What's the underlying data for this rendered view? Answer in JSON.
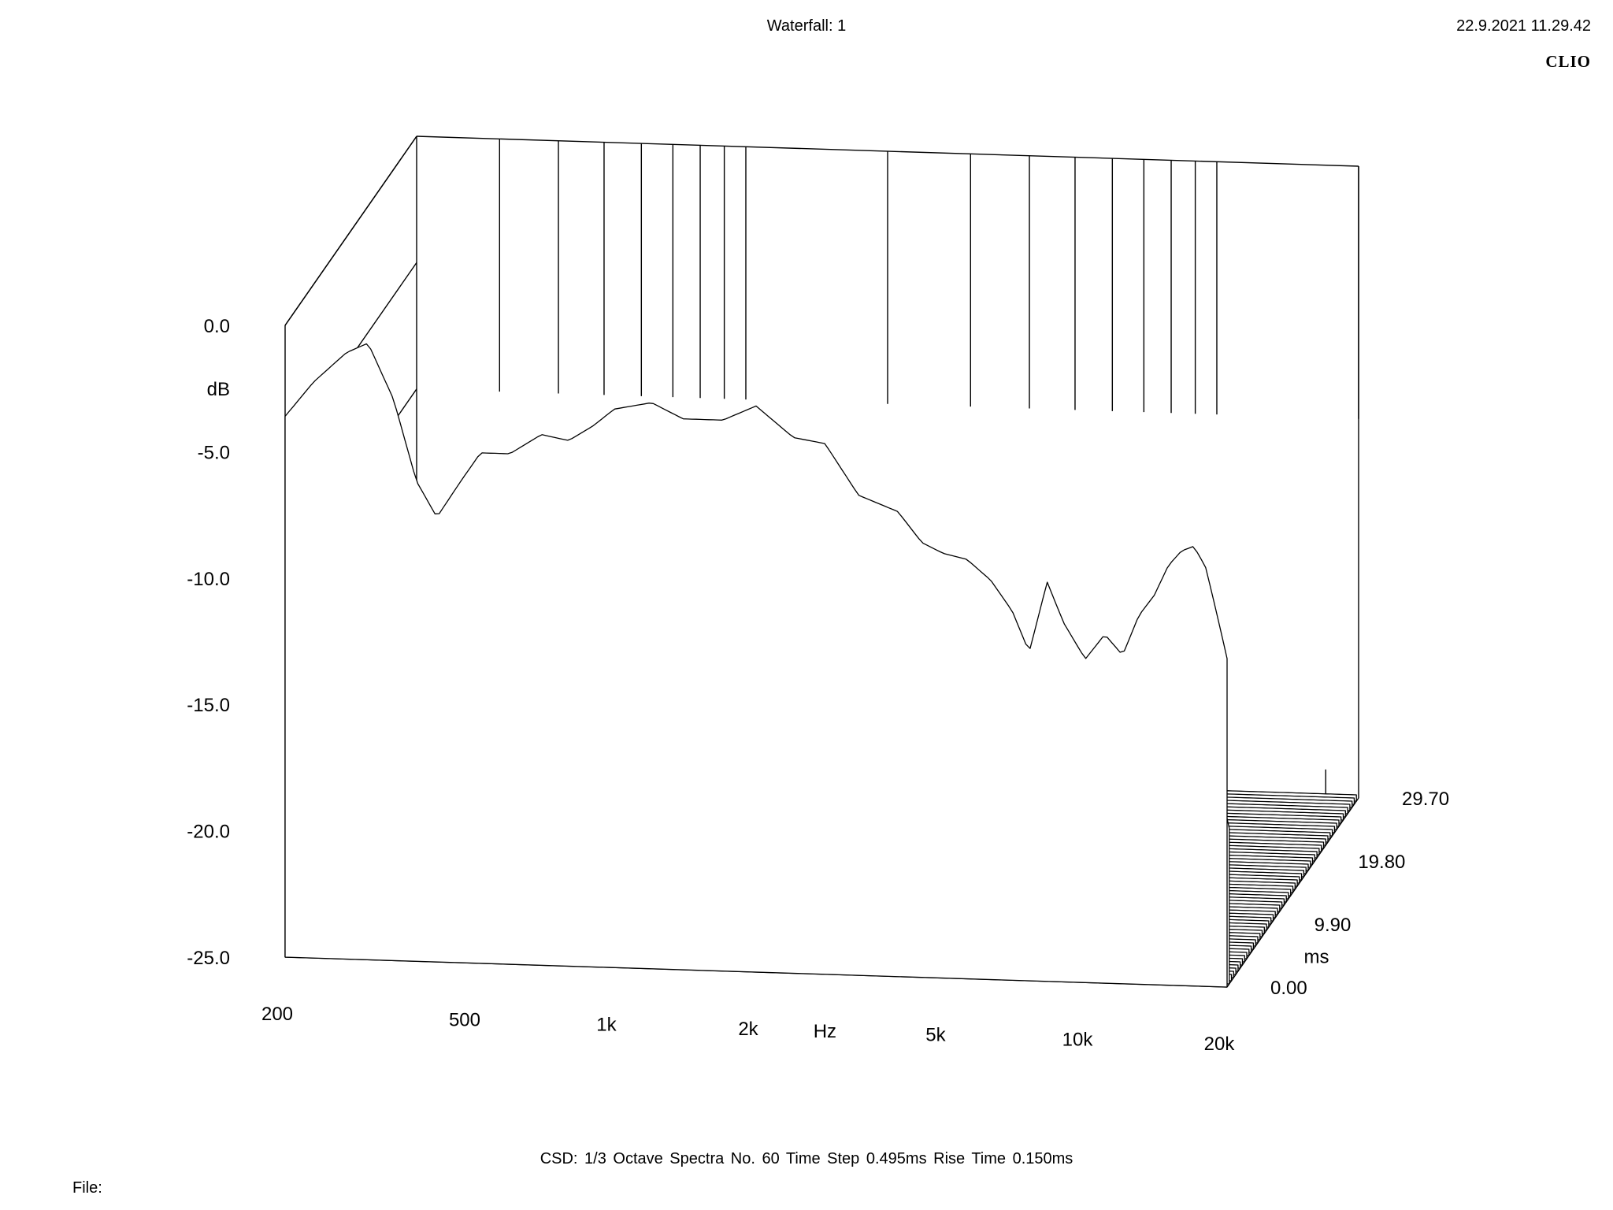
{
  "header": {
    "title": "Waterfall: 1",
    "datetime": "22.9.2021 11.29.42",
    "brand": "CLIO"
  },
  "footer": {
    "description": "CSD:   1/3 Octave   Spectra No. 60   Time Step 0.495ms   Rise Time 0.150ms",
    "file_label": "File:"
  },
  "chart_data": {
    "type": "waterfall",
    "title": "Waterfall: 1",
    "analysis": "CSD",
    "smoothing": "1/3 Octave",
    "spectra_count": 60,
    "time_step_ms": 0.495,
    "rise_time_ms": 0.15,
    "x_axis": {
      "label": "Hz",
      "scale": "log",
      "range": [
        200,
        20000
      ],
      "tick_values": [
        200,
        500,
        1000,
        2000,
        5000,
        10000,
        20000
      ],
      "tick_labels": [
        "200",
        "500",
        "1k",
        "2k",
        "5k",
        "10k",
        "20k"
      ]
    },
    "y_axis": {
      "label": "dB",
      "range": [
        -25,
        0
      ],
      "tick_values": [
        0,
        -5,
        -10,
        -15,
        -20,
        -25
      ],
      "tick_labels": [
        "0.0",
        "-5.0",
        "-10.0",
        "-15.0",
        "-20.0",
        "-25.0"
      ]
    },
    "z_axis": {
      "label": "ms",
      "range": [
        0,
        29.7
      ],
      "tick_values": [
        0,
        9.9,
        19.8,
        29.7
      ],
      "tick_labels": [
        "0.00",
        "9.90",
        "19.80",
        "29.70"
      ]
    },
    "first_spectrum": {
      "time_ms": 0,
      "freq_hz": [
        200,
        230,
        270,
        300,
        340,
        380,
        420,
        470,
        520,
        600,
        700,
        800,
        900,
        1000,
        1200,
        1400,
        1700,
        2000,
        2400,
        2800,
        3300,
        4000,
        4500,
        5000,
        5600,
        6300,
        7000,
        7600,
        8300,
        9000,
        10000,
        11000,
        12000,
        13000,
        14000,
        15000,
        16000,
        17000,
        18000,
        19000,
        20000
      ],
      "level_db": [
        -3.6,
        -2.2,
        -1.0,
        -0.6,
        -2.8,
        -6.0,
        -7.4,
        -6.0,
        -4.8,
        -4.8,
        -4.0,
        -4.2,
        -3.6,
        -2.9,
        -2.6,
        -3.2,
        -3.2,
        -2.6,
        -3.8,
        -4.0,
        -6.0,
        -6.6,
        -7.8,
        -8.2,
        -8.4,
        -9.2,
        -10.4,
        -12.0,
        -9.2,
        -10.8,
        -12.2,
        -11.2,
        -12.0,
        -10.4,
        -9.6,
        -8.4,
        -7.8,
        -7.6,
        -8.4,
        -10.2,
        -12.0
      ]
    }
  }
}
